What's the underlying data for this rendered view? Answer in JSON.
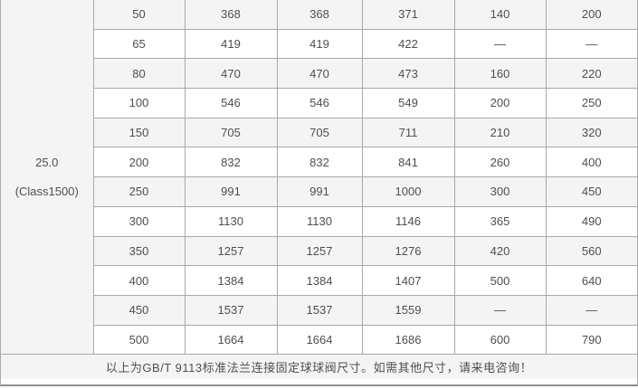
{
  "pressure": {
    "value": "25.0",
    "class_label": "(Class1500)"
  },
  "table": {
    "rows": [
      {
        "cells": [
          "50",
          "368",
          "368",
          "371",
          "140",
          "200"
        ]
      },
      {
        "cells": [
          "65",
          "419",
          "419",
          "422",
          "—",
          "—"
        ]
      },
      {
        "cells": [
          "80",
          "470",
          "470",
          "473",
          "160",
          "220"
        ]
      },
      {
        "cells": [
          "100",
          "546",
          "546",
          "549",
          "200",
          "250"
        ]
      },
      {
        "cells": [
          "150",
          "705",
          "705",
          "711",
          "210",
          "320"
        ]
      },
      {
        "cells": [
          "200",
          "832",
          "832",
          "841",
          "260",
          "400"
        ]
      },
      {
        "cells": [
          "250",
          "991",
          "991",
          "1000",
          "300",
          "450"
        ]
      },
      {
        "cells": [
          "300",
          "1130",
          "1130",
          "1146",
          "365",
          "490"
        ]
      },
      {
        "cells": [
          "350",
          "1257",
          "1257",
          "1276",
          "420",
          "560"
        ]
      },
      {
        "cells": [
          "400",
          "1384",
          "1384",
          "1407",
          "500",
          "640"
        ]
      },
      {
        "cells": [
          "450",
          "1537",
          "1537",
          "1559",
          "—",
          "—"
        ]
      },
      {
        "cells": [
          "500",
          "1664",
          "1664",
          "1686",
          "600",
          "790"
        ]
      }
    ],
    "footer_note": "以上为GB/T 9113标准法兰连接固定球球阀尺寸。如需其他尺寸，请来电咨询！"
  },
  "colors": {
    "row_alt_bg": "#f4f4f4",
    "cell_border": "#a9a9a9",
    "text": "#4f4f4f",
    "bottom_rule": "#8f8f8f"
  }
}
